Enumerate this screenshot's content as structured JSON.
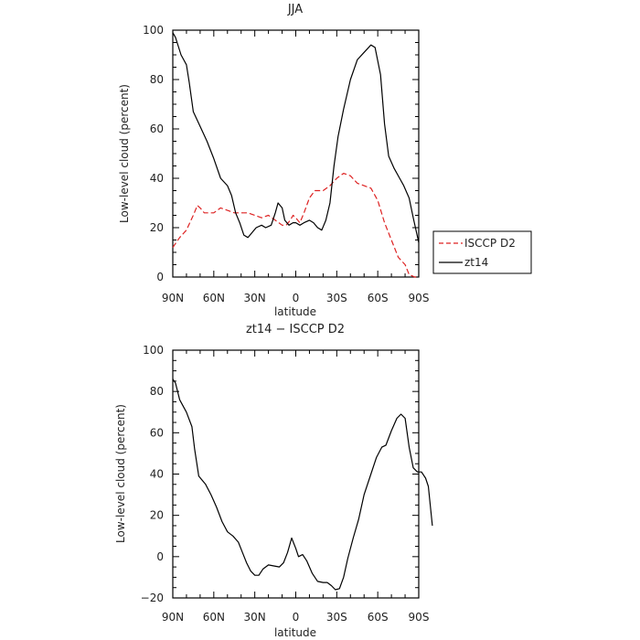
{
  "chart_data": [
    {
      "type": "line",
      "title": "JJA",
      "xlabel": "latitude",
      "ylabel": "Low-level cloud (percent)",
      "xlim": [
        90,
        -90
      ],
      "ylim": [
        0,
        100
      ],
      "xticks": [
        90,
        60,
        30,
        0,
        -30,
        -60,
        -90
      ],
      "xticklabels": [
        "90N",
        "60N",
        "30N",
        "0",
        "30S",
        "60S",
        "90S"
      ],
      "yticks": [
        0,
        20,
        40,
        60,
        80,
        100
      ],
      "yticklabels": [
        "0",
        "20",
        "40",
        "60",
        "80",
        "100"
      ],
      "legend": "right",
      "series": [
        {
          "name": "ISCCP D2",
          "color": "#dd2222",
          "dash": true,
          "points": [
            [
              90,
              12
            ],
            [
              85,
              16
            ],
            [
              80,
              19
            ],
            [
              75,
              25
            ],
            [
              72,
              29
            ],
            [
              70,
              28
            ],
            [
              67,
              26
            ],
            [
              63,
              26
            ],
            [
              60,
              26
            ],
            [
              55,
              28
            ],
            [
              50,
              27
            ],
            [
              45,
              26
            ],
            [
              40,
              26
            ],
            [
              35,
              26
            ],
            [
              30,
              25
            ],
            [
              25,
              24
            ],
            [
              20,
              25
            ],
            [
              15,
              23
            ],
            [
              10,
              21
            ],
            [
              7,
              21
            ],
            [
              4,
              23
            ],
            [
              2,
              25
            ],
            [
              0,
              24
            ],
            [
              -3,
              22
            ],
            [
              -6,
              26
            ],
            [
              -10,
              32
            ],
            [
              -14,
              35
            ],
            [
              -20,
              35
            ],
            [
              -25,
              37
            ],
            [
              -30,
              40
            ],
            [
              -35,
              42
            ],
            [
              -40,
              41
            ],
            [
              -45,
              38
            ],
            [
              -50,
              37
            ],
            [
              -55,
              36
            ],
            [
              -60,
              31
            ],
            [
              -65,
              22
            ],
            [
              -70,
              15
            ],
            [
              -75,
              8
            ],
            [
              -80,
              5
            ],
            [
              -83,
              1
            ],
            [
              -87,
              0
            ],
            [
              -90,
              0
            ]
          ]
        },
        {
          "name": "zt14",
          "color": "#000000",
          "dash": false,
          "points": [
            [
              90,
              99
            ],
            [
              88,
              97
            ],
            [
              84,
              90
            ],
            [
              80,
              86
            ],
            [
              78,
              79
            ],
            [
              75,
              67
            ],
            [
              70,
              61
            ],
            [
              65,
              55
            ],
            [
              60,
              48
            ],
            [
              55,
              40
            ],
            [
              50,
              37
            ],
            [
              47,
              33
            ],
            [
              44,
              26
            ],
            [
              41,
              22
            ],
            [
              38,
              17
            ],
            [
              35,
              16
            ],
            [
              32,
              18
            ],
            [
              29,
              20
            ],
            [
              25,
              21
            ],
            [
              22,
              20
            ],
            [
              18,
              21
            ],
            [
              15,
              26
            ],
            [
              13,
              30
            ],
            [
              10,
              28
            ],
            [
              8,
              23
            ],
            [
              5,
              21
            ],
            [
              2,
              22
            ],
            [
              0,
              22
            ],
            [
              -3,
              21
            ],
            [
              -6,
              22
            ],
            [
              -10,
              23
            ],
            [
              -13,
              22
            ],
            [
              -16,
              20
            ],
            [
              -19,
              19
            ],
            [
              -22,
              23
            ],
            [
              -25,
              30
            ],
            [
              -28,
              45
            ],
            [
              -31,
              57
            ],
            [
              -35,
              68
            ],
            [
              -40,
              80
            ],
            [
              -45,
              88
            ],
            [
              -50,
              91
            ],
            [
              -55,
              94
            ],
            [
              -58,
              93
            ],
            [
              -62,
              82
            ],
            [
              -65,
              62
            ],
            [
              -68,
              49
            ],
            [
              -72,
              44
            ],
            [
              -76,
              40
            ],
            [
              -79,
              37
            ],
            [
              -83,
              32
            ],
            [
              -86,
              24
            ],
            [
              -90,
              14
            ]
          ]
        }
      ]
    },
    {
      "type": "line",
      "title": "zt14 − ISCCP D2",
      "xlabel": "latitude",
      "ylabel": "Low-level cloud (percent)",
      "xlim": [
        90,
        -90
      ],
      "ylim": [
        -20,
        100
      ],
      "xticks": [
        90,
        60,
        30,
        0,
        -30,
        -60,
        -90
      ],
      "xticklabels": [
        "90N",
        "60N",
        "30N",
        "0",
        "30S",
        "60S",
        "90S"
      ],
      "yticks": [
        -20,
        0,
        20,
        40,
        60,
        80,
        100
      ],
      "yticklabels": [
        "−20",
        "0",
        "20",
        "40",
        "60",
        "80",
        "100"
      ],
      "series": [
        {
          "color": "#000000",
          "dash": false,
          "points": [
            [
              90,
              86
            ],
            [
              88,
              84
            ],
            [
              85,
              76
            ],
            [
              80,
              70
            ],
            [
              76,
              63
            ],
            [
              74,
              52
            ],
            [
              71,
              39
            ],
            [
              66,
              35
            ],
            [
              62,
              30
            ],
            [
              58,
              24
            ],
            [
              54,
              17
            ],
            [
              50,
              12
            ],
            [
              46,
              10
            ],
            [
              42,
              7
            ],
            [
              39,
              2
            ],
            [
              36,
              -3
            ],
            [
              33,
              -7
            ],
            [
              30,
              -9
            ],
            [
              27,
              -9
            ],
            [
              24,
              -6
            ],
            [
              20,
              -4
            ],
            [
              16,
              -4.5
            ],
            [
              12,
              -5
            ],
            [
              9,
              -3
            ],
            [
              6,
              2
            ],
            [
              3,
              9
            ],
            [
              0,
              4
            ],
            [
              -2,
              0
            ],
            [
              -5,
              1
            ],
            [
              -8,
              -2
            ],
            [
              -12,
              -8
            ],
            [
              -16,
              -12
            ],
            [
              -20,
              -12.5
            ],
            [
              -23,
              -12.5
            ],
            [
              -26,
              -14
            ],
            [
              -29,
              -16
            ],
            [
              -32,
              -15.5
            ],
            [
              -35,
              -10
            ],
            [
              -38,
              -1
            ],
            [
              -42,
              9
            ],
            [
              -46,
              18
            ],
            [
              -50,
              30
            ],
            [
              -55,
              40
            ],
            [
              -59,
              48
            ],
            [
              -63,
              53
            ],
            [
              -66,
              54
            ],
            [
              -70,
              61
            ],
            [
              -74,
              67
            ],
            [
              -77,
              69
            ],
            [
              -80,
              67
            ],
            [
              -83,
              53
            ],
            [
              -86,
              43
            ],
            [
              -89,
              41
            ],
            [
              -92,
              41
            ],
            [
              -95,
              38
            ],
            [
              -97,
              34
            ],
            [
              -100,
              15
            ]
          ]
        }
      ]
    }
  ]
}
